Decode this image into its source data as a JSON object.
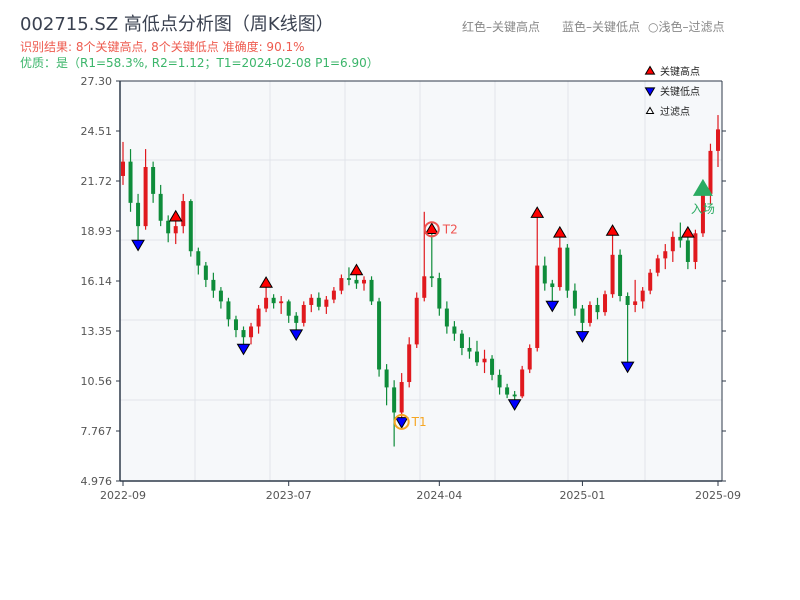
{
  "header": {
    "title": "002715.SZ 高低点分析图（周K线图）",
    "result_line": "识别结果: 8个关键高点, 8个关键低点   准确度: 90.1%",
    "quality_line": "优质：是（R1=58.3%, R2=1.12；T1=2024-02-08 P1=6.90）",
    "hint_red": "红色–关键高点",
    "hint_blue": "蓝色–关键低点",
    "hint_light": "○浅色–过滤点"
  },
  "legend": {
    "items": [
      {
        "label": "关键高点",
        "color": "#ff0000",
        "shape": "triangle-up"
      },
      {
        "label": "关键低点",
        "color": "#0000ff",
        "shape": "triangle-down"
      },
      {
        "label": "过滤点",
        "color": "#ffffff",
        "shape": "triangle-up-outline"
      }
    ],
    "placement": "top-right"
  },
  "colors": {
    "up": "#e0191e",
    "down": "#0e8c3a",
    "high": "#ff0000",
    "low": "#0000ff",
    "t1": "#f5a623",
    "t2": "#ef5350",
    "entry": "#2bab62",
    "plot_bg": "#f6f8fa",
    "grid": "#e1e4ea",
    "axis": "#2f3a4a"
  },
  "chart_data": {
    "type": "candlestick",
    "title": "002715.SZ 高低点分析图（周K线图）",
    "xlabel": "",
    "ylabel": "",
    "ylim": [
      4.976,
      27.3
    ],
    "yticks": [
      "27.30",
      "24.51",
      "21.72",
      "18.93",
      "16.14",
      "13.35",
      "10.56",
      "7.767",
      "4.976"
    ],
    "xticks": [
      {
        "label": "2022-09",
        "date": "2022-09-02"
      },
      {
        "label": "2023-07",
        "date": "2023-07-07"
      },
      {
        "label": "2024-04",
        "date": "2024-04-12"
      },
      {
        "label": "2025-01",
        "date": "2025-01-03"
      },
      {
        "label": "2025-09",
        "date": "2025-09-12"
      }
    ],
    "grid": true,
    "dates": [
      "2022-09-02",
      "2022-09-16",
      "2022-09-30",
      "2022-10-14",
      "2022-10-28",
      "2022-11-11",
      "2022-11-25",
      "2022-12-09",
      "2022-12-23",
      "2023-01-06",
      "2023-01-20",
      "2023-02-03",
      "2023-02-17",
      "2023-03-03",
      "2023-03-17",
      "2023-03-31",
      "2023-04-14",
      "2023-04-28",
      "2023-05-12",
      "2023-05-26",
      "2023-06-09",
      "2023-06-23",
      "2023-07-07",
      "2023-07-21",
      "2023-08-04",
      "2023-08-18",
      "2023-09-01",
      "2023-09-15",
      "2023-09-29",
      "2023-10-13",
      "2023-10-27",
      "2023-11-10",
      "2023-11-24",
      "2023-12-08",
      "2023-12-22",
      "2024-01-05",
      "2024-01-19",
      "2024-02-02",
      "2024-02-16",
      "2024-03-01",
      "2024-03-15",
      "2024-03-29",
      "2024-04-12",
      "2024-04-26",
      "2024-05-10",
      "2024-05-24",
      "2024-06-07",
      "2024-06-21",
      "2024-07-05",
      "2024-07-19",
      "2024-08-02",
      "2024-08-16",
      "2024-08-30",
      "2024-09-13",
      "2024-09-27",
      "2024-10-11",
      "2024-10-25",
      "2024-11-08",
      "2024-11-22",
      "2024-12-06",
      "2024-12-20",
      "2025-01-03",
      "2025-01-17",
      "2025-01-31",
      "2025-02-14",
      "2025-02-28",
      "2025-03-14",
      "2025-03-28",
      "2025-04-11",
      "2025-04-25",
      "2025-05-09",
      "2025-05-23",
      "2025-06-06",
      "2025-06-20",
      "2025-07-04",
      "2025-07-18",
      "2025-08-01",
      "2025-08-15",
      "2025-08-29",
      "2025-09-12"
    ],
    "ohlc": [
      [
        22.0,
        23.9,
        21.5,
        22.8
      ],
      [
        22.8,
        23.5,
        20.0,
        20.5
      ],
      [
        20.5,
        21.0,
        18.4,
        19.2
      ],
      [
        19.2,
        23.5,
        19.0,
        22.5
      ],
      [
        22.5,
        22.8,
        20.5,
        21.0
      ],
      [
        21.0,
        21.5,
        19.2,
        19.5
      ],
      [
        19.5,
        19.8,
        18.3,
        18.8
      ],
      [
        18.8,
        19.5,
        18.2,
        19.2
      ],
      [
        19.2,
        21.0,
        18.8,
        20.6
      ],
      [
        20.6,
        20.7,
        17.5,
        17.8
      ],
      [
        17.8,
        18.0,
        16.5,
        17.0
      ],
      [
        17.0,
        17.2,
        15.8,
        16.2
      ],
      [
        16.2,
        16.6,
        15.2,
        15.6
      ],
      [
        15.6,
        15.8,
        14.6,
        15.0
      ],
      [
        15.0,
        15.2,
        13.6,
        14.0
      ],
      [
        14.0,
        14.2,
        13.0,
        13.4
      ],
      [
        13.4,
        13.6,
        12.6,
        13.0
      ],
      [
        13.0,
        13.8,
        12.6,
        13.6
      ],
      [
        13.6,
        14.8,
        13.2,
        14.6
      ],
      [
        14.6,
        15.8,
        14.4,
        15.2
      ],
      [
        15.2,
        15.4,
        14.6,
        14.9
      ],
      [
        14.9,
        15.3,
        14.3,
        15.0
      ],
      [
        15.0,
        15.1,
        13.8,
        14.2
      ],
      [
        14.2,
        14.4,
        13.4,
        13.8
      ],
      [
        13.8,
        15.0,
        13.6,
        14.8
      ],
      [
        14.8,
        15.4,
        14.4,
        15.2
      ],
      [
        15.2,
        15.5,
        14.5,
        14.7
      ],
      [
        14.7,
        15.3,
        14.3,
        15.1
      ],
      [
        15.1,
        15.8,
        14.9,
        15.6
      ],
      [
        15.6,
        16.5,
        15.4,
        16.3
      ],
      [
        16.3,
        16.9,
        15.9,
        16.2
      ],
      [
        16.2,
        16.5,
        15.7,
        16.0
      ],
      [
        16.0,
        16.4,
        15.6,
        16.2
      ],
      [
        16.2,
        16.4,
        14.8,
        15.0
      ],
      [
        15.0,
        15.2,
        10.8,
        11.2
      ],
      [
        11.2,
        11.5,
        9.2,
        10.2
      ],
      [
        10.2,
        10.6,
        6.9,
        8.8
      ],
      [
        8.8,
        11.0,
        8.5,
        10.5
      ],
      [
        10.5,
        13.0,
        10.2,
        12.6
      ],
      [
        12.6,
        15.5,
        12.4,
        15.2
      ],
      [
        15.2,
        20.0,
        15.0,
        16.4
      ],
      [
        16.4,
        18.8,
        15.8,
        16.3
      ],
      [
        16.3,
        16.6,
        14.2,
        14.6
      ],
      [
        14.6,
        15.0,
        13.2,
        13.6
      ],
      [
        13.6,
        13.9,
        12.8,
        13.2
      ],
      [
        13.2,
        13.4,
        12.0,
        12.4
      ],
      [
        12.4,
        13.0,
        11.8,
        12.2
      ],
      [
        12.2,
        12.8,
        11.4,
        11.6
      ],
      [
        11.6,
        12.3,
        11.0,
        11.8
      ],
      [
        11.8,
        12.0,
        10.6,
        10.9
      ],
      [
        10.9,
        11.2,
        9.8,
        10.2
      ],
      [
        10.2,
        10.4,
        9.6,
        9.8
      ],
      [
        9.8,
        10.0,
        9.5,
        9.7
      ],
      [
        9.7,
        11.4,
        9.6,
        11.2
      ],
      [
        11.2,
        12.6,
        11.0,
        12.4
      ],
      [
        12.4,
        19.7,
        12.2,
        17.0
      ],
      [
        17.0,
        17.5,
        15.6,
        16.0
      ],
      [
        16.0,
        16.2,
        15.0,
        15.8
      ],
      [
        15.8,
        18.6,
        15.6,
        18.0
      ],
      [
        18.0,
        18.2,
        15.2,
        15.6
      ],
      [
        15.6,
        16.0,
        14.2,
        14.6
      ],
      [
        14.6,
        14.8,
        13.3,
        13.8
      ],
      [
        13.8,
        15.0,
        13.6,
        14.8
      ],
      [
        14.8,
        15.2,
        14.0,
        14.4
      ],
      [
        14.4,
        15.6,
        14.2,
        15.4
      ],
      [
        15.4,
        18.7,
        15.2,
        17.6
      ],
      [
        17.6,
        17.9,
        15.0,
        15.3
      ],
      [
        15.3,
        15.5,
        11.6,
        14.8
      ],
      [
        14.8,
        16.2,
        14.4,
        15.0
      ],
      [
        15.0,
        15.8,
        14.6,
        15.6
      ],
      [
        15.6,
        16.8,
        15.4,
        16.6
      ],
      [
        16.6,
        17.6,
        16.4,
        17.4
      ],
      [
        17.4,
        18.2,
        16.8,
        17.8
      ],
      [
        17.8,
        18.9,
        17.2,
        18.6
      ],
      [
        18.6,
        19.4,
        18.0,
        18.4
      ],
      [
        18.4,
        18.6,
        16.8,
        17.2
      ],
      [
        17.2,
        19.0,
        16.8,
        18.8
      ],
      [
        18.8,
        21.5,
        18.6,
        21.0
      ],
      [
        21.0,
        23.8,
        20.4,
        23.4
      ],
      [
        23.4,
        25.4,
        22.5,
        24.6
      ]
    ],
    "key_highs": [
      "2022-12-09",
      "2023-05-26",
      "2023-11-10",
      "2024-03-29",
      "2024-10-11",
      "2024-11-22",
      "2025-02-28",
      "2025-07-18"
    ],
    "key_lows": [
      "2022-09-30",
      "2023-04-14",
      "2023-07-21",
      "2024-02-02",
      "2024-08-30",
      "2024-11-08",
      "2025-01-03",
      "2025-03-28"
    ],
    "annotations": [
      {
        "label": "T1",
        "date": "2024-02-02",
        "value": 6.9
      },
      {
        "label": "T2",
        "date": "2024-03-29",
        "value": 20.0
      },
      {
        "label": "入场",
        "date": "2025-08-15",
        "value": 21.0
      }
    ]
  }
}
